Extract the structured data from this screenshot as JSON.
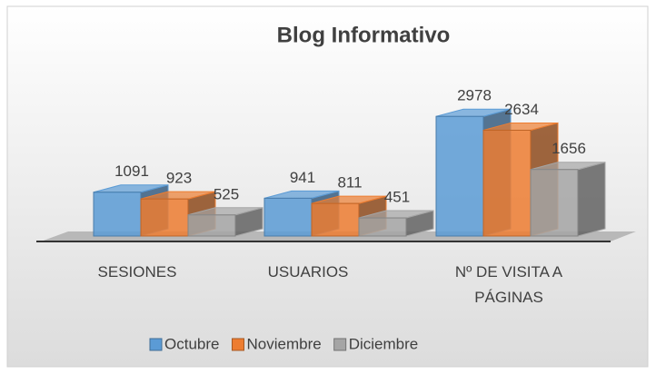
{
  "chart_data": {
    "type": "bar3d",
    "title": "Blog Informativo",
    "categories": [
      "SESIONES",
      "USUARIOS",
      "Nº DE VISITA A PÁGINAS"
    ],
    "series": [
      {
        "name": "Octubre",
        "color": "#5b9bd5",
        "values": [
          1091,
          941,
          2978
        ]
      },
      {
        "name": "Noviembre",
        "color": "#ed7d31",
        "values": [
          923,
          811,
          2634
        ]
      },
      {
        "name": "Diciembre",
        "color": "#a5a5a5",
        "values": [
          525,
          451,
          1656
        ]
      }
    ],
    "ylim": [
      0,
      4000
    ],
    "legend": "bottom"
  }
}
